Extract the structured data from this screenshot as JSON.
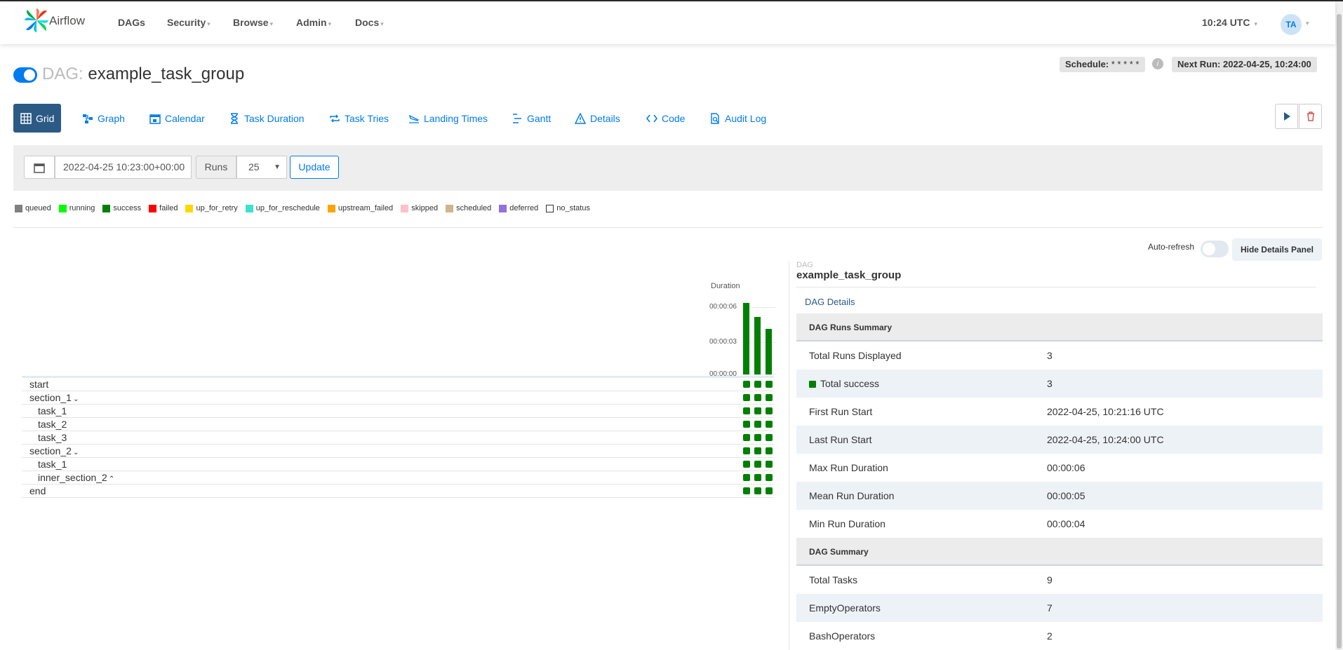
{
  "navbar": {
    "brand": "Airflow",
    "items": [
      {
        "label": "DAGs",
        "dropdown": false
      },
      {
        "label": "Security",
        "dropdown": true
      },
      {
        "label": "Browse",
        "dropdown": true
      },
      {
        "label": "Admin",
        "dropdown": true
      },
      {
        "label": "Docs",
        "dropdown": true
      }
    ],
    "time": "10:24 UTC",
    "user_initials": "TA"
  },
  "dag": {
    "prefix": "DAG:",
    "name": "example_task_group",
    "paused": false,
    "schedule_label": "Schedule:",
    "schedule_value": "* * * * *",
    "next_run_label": "Next Run:",
    "next_run_value": "2022-04-25, 10:24:00"
  },
  "tabs": [
    {
      "label": "Grid",
      "icon": "grid-icon",
      "active": true
    },
    {
      "label": "Graph",
      "icon": "graph-icon",
      "active": false
    },
    {
      "label": "Calendar",
      "icon": "calendar-icon",
      "active": false
    },
    {
      "label": "Task Duration",
      "icon": "hourglass-icon",
      "active": false
    },
    {
      "label": "Task Tries",
      "icon": "repeat-icon",
      "active": false
    },
    {
      "label": "Landing Times",
      "icon": "plane-landing-icon",
      "active": false
    },
    {
      "label": "Gantt",
      "icon": "gantt-icon",
      "active": false
    },
    {
      "label": "Details",
      "icon": "warning-triangle-icon",
      "active": false
    },
    {
      "label": "Code",
      "icon": "code-icon",
      "active": false
    },
    {
      "label": "Audit Log",
      "icon": "audit-log-icon",
      "active": false
    }
  ],
  "filters": {
    "base_date": "2022-04-25 10:23:00+00:00",
    "runs_label": "Runs",
    "runs_value": "25",
    "update_label": "Update"
  },
  "legend": [
    {
      "label": "queued",
      "color": "#808080"
    },
    {
      "label": "running",
      "color": "#00ff00"
    },
    {
      "label": "success",
      "color": "#008000"
    },
    {
      "label": "failed",
      "color": "#ff0000"
    },
    {
      "label": "up_for_retry",
      "color": "#ffd700"
    },
    {
      "label": "up_for_reschedule",
      "color": "#40e0d0"
    },
    {
      "label": "upstream_failed",
      "color": "#ffa500"
    },
    {
      "label": "skipped",
      "color": "#ffc0cb"
    },
    {
      "label": "scheduled",
      "color": "#d2b48c"
    },
    {
      "label": "deferred",
      "color": "#9370db"
    },
    {
      "label": "no_status",
      "color": "#ffffff"
    }
  ],
  "grid": {
    "auto_refresh_label": "Auto-refresh",
    "auto_refresh_on": false,
    "hide_details_label": "Hide Details Panel",
    "duration_label": "Duration",
    "duration_ticks": [
      "00:00:06",
      "00:00:03",
      "00:00:00"
    ],
    "run_durations_seconds": [
      6,
      4.8,
      3.8
    ],
    "run_states": [
      "success",
      "success",
      "success"
    ],
    "tasks": [
      {
        "label": "start",
        "indent": 0,
        "group": false
      },
      {
        "label": "section_1",
        "indent": 0,
        "group": true,
        "expanded": true
      },
      {
        "label": "task_1",
        "indent": 1,
        "group": false
      },
      {
        "label": "task_2",
        "indent": 1,
        "group": false
      },
      {
        "label": "task_3",
        "indent": 1,
        "group": false
      },
      {
        "label": "section_2",
        "indent": 0,
        "group": true,
        "expanded": true
      },
      {
        "label": "task_1",
        "indent": 1,
        "group": false
      },
      {
        "label": "inner_section_2",
        "indent": 1,
        "group": true,
        "expanded": false
      },
      {
        "label": "end",
        "indent": 0,
        "group": false
      }
    ]
  },
  "details": {
    "kind": "DAG",
    "name": "example_task_group",
    "link": "DAG Details",
    "rows": [
      {
        "key": "DAG Runs Summary",
        "value": "",
        "header": true
      },
      {
        "key": "Total Runs Displayed",
        "value": "3"
      },
      {
        "key": "Total success",
        "value": "3",
        "status_color": "#008000"
      },
      {
        "key": "First Run Start",
        "value": "2022-04-25, 10:21:16 UTC"
      },
      {
        "key": "Last Run Start",
        "value": "2022-04-25, 10:24:00 UTC"
      },
      {
        "key": "Max Run Duration",
        "value": "00:00:06"
      },
      {
        "key": "Mean Run Duration",
        "value": "00:00:05"
      },
      {
        "key": "Min Run Duration",
        "value": "00:00:04"
      },
      {
        "key": "DAG Summary",
        "value": "",
        "header": true
      },
      {
        "key": "Total Tasks",
        "value": "9"
      },
      {
        "key": "EmptyOperators",
        "value": "7"
      },
      {
        "key": "BashOperators",
        "value": "2"
      }
    ]
  }
}
